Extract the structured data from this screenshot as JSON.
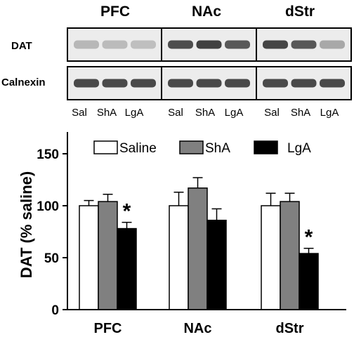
{
  "blot": {
    "panels": [
      {
        "title": "PFC",
        "dat_intensity": [
          0.22,
          0.2,
          0.18
        ],
        "calnexin_intensity": [
          0.8,
          0.8,
          0.8
        ]
      },
      {
        "title": "NAc",
        "dat_intensity": [
          0.78,
          0.85,
          0.72
        ],
        "calnexin_intensity": [
          0.8,
          0.8,
          0.8
        ]
      },
      {
        "title": "dStr",
        "dat_intensity": [
          0.82,
          0.72,
          0.3
        ],
        "calnexin_intensity": [
          0.8,
          0.8,
          0.8
        ]
      }
    ],
    "rows": [
      "DAT",
      "Calnexin"
    ],
    "lanes": [
      "Sal",
      "ShA",
      "LgA"
    ]
  },
  "chart_data": {
    "type": "bar",
    "categories": [
      "PFC",
      "NAc",
      "dStr"
    ],
    "series": [
      {
        "name": "Saline",
        "values": [
          100,
          100,
          100
        ],
        "errors": [
          5,
          13,
          12
        ],
        "color": "#ffffff"
      },
      {
        "name": "ShA",
        "values": [
          104,
          117,
          104
        ],
        "errors": [
          7,
          10,
          8
        ],
        "color": "#808080"
      },
      {
        "name": "LgA",
        "values": [
          78,
          86,
          54
        ],
        "errors": [
          6,
          11,
          5
        ],
        "color": "#000000"
      }
    ],
    "significance": [
      "*",
      "",
      "*"
    ],
    "ylabel": "DAT (% saline)",
    "ylim": [
      0,
      175
    ],
    "yticks": [
      0,
      50,
      100,
      150
    ],
    "legend": "top-right",
    "grid": false
  }
}
